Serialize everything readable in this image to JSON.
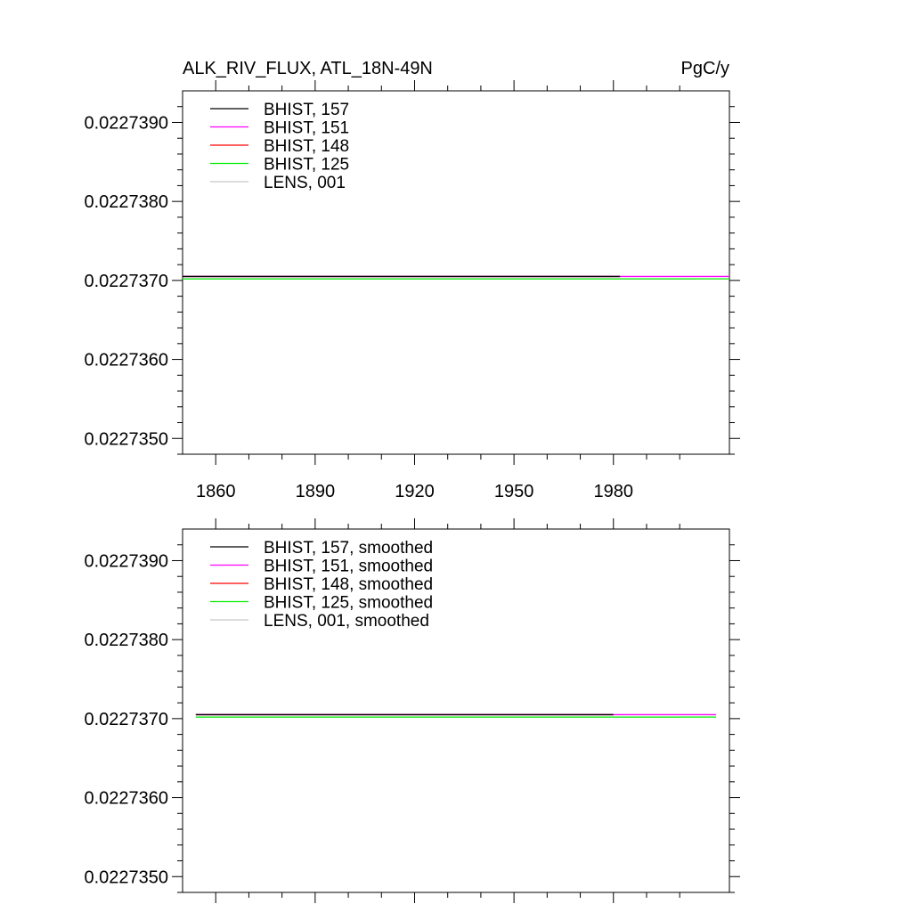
{
  "header": {
    "title": "ALK_RIV_FLUX, ATL_18N-49N",
    "units": "PgC/y"
  },
  "chart_data": [
    {
      "type": "line",
      "title": "ALK_RIV_FLUX, ATL_18N-49N",
      "units": "PgC/y",
      "xlim": [
        1850,
        2015
      ],
      "ylim": [
        0.0227348,
        0.0227394
      ],
      "x_ticks": [
        1860,
        1890,
        1920,
        1950,
        1980
      ],
      "x_tick_labels": [
        "1860",
        "1890",
        "1920",
        "1950",
        "1980"
      ],
      "y_ticks": [
        0.022735,
        0.022736,
        0.022737,
        0.022738,
        0.022739
      ],
      "y_tick_labels": [
        "0.0227350",
        "0.0227360",
        "0.0227370",
        "0.0227380",
        "0.0227390"
      ],
      "grid": false,
      "legend_position": "top-left",
      "series": [
        {
          "name": "BHIST, 157",
          "color": "#000000",
          "x": [
            1850,
            1982
          ],
          "y": [
            0.02273705,
            0.02273705
          ]
        },
        {
          "name": "BHIST, 151",
          "color": "#ff00ff",
          "x": [
            1850,
            2015
          ],
          "y": [
            0.02273705,
            0.02273705
          ]
        },
        {
          "name": "BHIST, 148",
          "color": "#ff0000",
          "x": [
            1850,
            1982
          ],
          "y": [
            0.02273705,
            0.02273705
          ]
        },
        {
          "name": "BHIST, 125",
          "color": "#00ee00",
          "x": [
            1850,
            2015
          ],
          "y": [
            0.02273702,
            0.02273702
          ]
        },
        {
          "name": "LENS, 001",
          "color": "#c8c8c8",
          "x": [
            1850,
            2005
          ],
          "y": [
            0.02273702,
            0.02273702
          ]
        }
      ]
    },
    {
      "type": "line",
      "title": "",
      "xlim": [
        1850,
        2015
      ],
      "ylim": [
        0.0227348,
        0.0227394
      ],
      "x_ticks": [
        1860,
        1890,
        1920,
        1950,
        1980
      ],
      "x_tick_labels": [],
      "y_ticks": [
        0.022735,
        0.022736,
        0.022737,
        0.022738,
        0.022739
      ],
      "y_tick_labels": [
        "0.0227350",
        "0.0227360",
        "0.0227370",
        "0.0227380",
        "0.0227390"
      ],
      "grid": false,
      "legend_position": "top-left",
      "series": [
        {
          "name": "BHIST, 157, smoothed",
          "color": "#000000",
          "x": [
            1854,
            1980
          ],
          "y": [
            0.02273705,
            0.02273705
          ]
        },
        {
          "name": "BHIST, 151, smoothed",
          "color": "#ff00ff",
          "x": [
            1854,
            2011
          ],
          "y": [
            0.02273705,
            0.02273705
          ]
        },
        {
          "name": "BHIST, 148, smoothed",
          "color": "#ff0000",
          "x": [
            1854,
            1980
          ],
          "y": [
            0.02273705,
            0.02273705
          ]
        },
        {
          "name": "BHIST, 125, smoothed",
          "color": "#00ee00",
          "x": [
            1854,
            2011
          ],
          "y": [
            0.02273702,
            0.02273702
          ]
        },
        {
          "name": "LENS, 001, smoothed",
          "color": "#c8c8c8",
          "x": [
            1854,
            2000
          ],
          "y": [
            0.02273702,
            0.02273702
          ]
        }
      ]
    }
  ]
}
